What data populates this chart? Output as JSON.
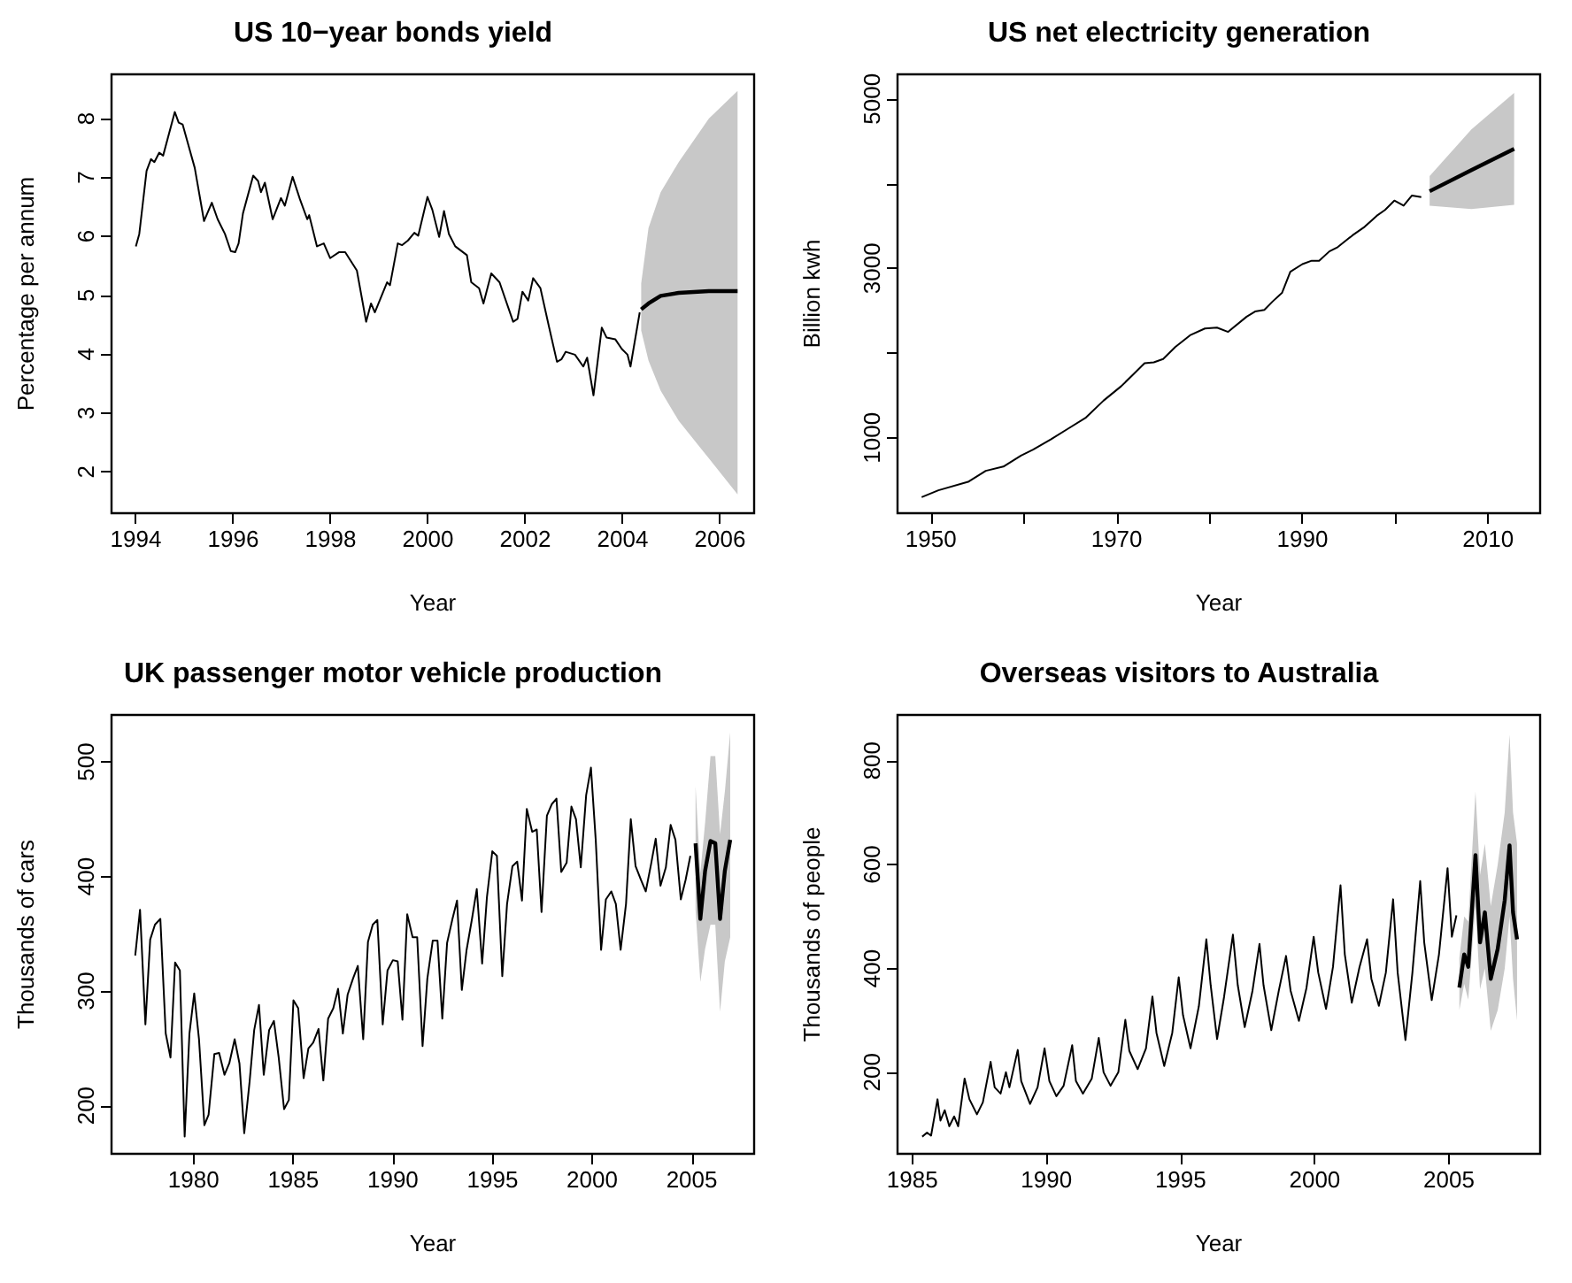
{
  "chart_data": [
    {
      "type": "line",
      "title": "US 10−year bonds yield",
      "xlabel": "Year",
      "ylabel": "Percentage per annum",
      "xlim": [
        1993.5,
        2006.7
      ],
      "ylim": [
        1.3,
        8.75
      ],
      "xticks": [
        1994,
        1996,
        1998,
        2000,
        2002,
        2004,
        2006
      ],
      "yticks": [
        2,
        3,
        4,
        5,
        6,
        7,
        8
      ],
      "series": [
        {
          "type": "line",
          "color": "#000000",
          "x": [
            1994.0,
            1994.07,
            1994.22,
            1994.31,
            1994.38,
            1994.48,
            1994.56,
            1994.8,
            1994.88,
            1994.96,
            1995.21,
            1995.4,
            1995.56,
            1995.68,
            1995.83,
            1995.95,
            1996.04,
            1996.11,
            1996.2,
            1996.41,
            1996.51,
            1996.57,
            1996.65,
            1996.81,
            1996.98,
            1997.06,
            1997.22,
            1997.37,
            1997.52,
            1997.56,
            1997.72,
            1997.86,
            1997.99,
            1998.17,
            1998.3,
            1998.54,
            1998.73,
            1998.83,
            1998.91,
            1999.16,
            1999.22,
            1999.38,
            1999.47,
            1999.59,
            1999.72,
            1999.8,
            1999.99,
            2000.09,
            2000.23,
            2000.33,
            2000.43,
            2000.56,
            2000.8,
            2000.89,
            2001.05,
            2001.14,
            2001.3,
            2001.47,
            2001.75,
            2001.84,
            2001.94,
            2002.06,
            2002.16,
            2002.31,
            2002.49,
            2002.65,
            2002.74,
            2002.83,
            2003.02,
            2003.19,
            2003.27,
            2003.4,
            2003.57,
            2003.67,
            2003.85,
            2003.98,
            2004.1,
            2004.16,
            2004.35
          ],
          "values": [
            5.83,
            6.04,
            7.11,
            7.31,
            7.26,
            7.42,
            7.37,
            8.11,
            7.93,
            7.9,
            7.16,
            6.26,
            6.57,
            6.29,
            6.04,
            5.75,
            5.73,
            5.88,
            6.39,
            7.03,
            6.94,
            6.75,
            6.91,
            6.29,
            6.65,
            6.52,
            7.01,
            6.63,
            6.29,
            6.36,
            5.83,
            5.88,
            5.63,
            5.73,
            5.73,
            5.42,
            4.55,
            4.86,
            4.71,
            5.22,
            5.17,
            5.88,
            5.85,
            5.93,
            6.06,
            6.01,
            6.67,
            6.45,
            5.99,
            6.43,
            6.04,
            5.83,
            5.68,
            5.22,
            5.12,
            4.86,
            5.37,
            5.22,
            4.55,
            4.6,
            5.06,
            4.91,
            5.29,
            5.12,
            4.45,
            3.87,
            3.91,
            4.04,
            3.99,
            3.79,
            3.94,
            3.3,
            4.45,
            4.28,
            4.25,
            4.09,
            3.99,
            3.79,
            4.71
          ]
        },
        {
          "type": "line",
          "color": "#000000",
          "x": [
            2004.38,
            2004.53,
            2004.78,
            2005.15,
            2005.77,
            2006.36
          ],
          "values": [
            4.76,
            4.86,
            4.99,
            5.04,
            5.07,
            5.07
          ],
          "lower": [
            4.4,
            3.89,
            3.38,
            2.87,
            2.23,
            1.62
          ],
          "upper": [
            5.2,
            6.14,
            6.75,
            7.26,
            8.0,
            8.47
          ]
        }
      ]
    },
    {
      "type": "line",
      "title": "US net electricity generation",
      "xlabel": "Year",
      "ylabel": "Billion kwh",
      "xlim": [
        1946.4,
        2015.6
      ],
      "ylim": [
        110,
        5290
      ],
      "xticks": [
        1950,
        {
          "value": 1960,
          "label": null
        },
        1970,
        {
          "value": 1980,
          "label": null
        },
        1990,
        {
          "value": 2000,
          "label": null
        },
        2010
      ],
      "yticks": [
        1000,
        {
          "value": 2000,
          "label": null
        },
        3000,
        {
          "value": 4000,
          "label": null
        },
        5000
      ],
      "series": [
        {
          "type": "line",
          "color": "#000000",
          "x": [
            1949,
            1950.8,
            1954,
            1955.9,
            1957.8,
            1959.7,
            1961,
            1962.9,
            1964.8,
            1966.7,
            1968.6,
            1970.5,
            1971.8,
            1973,
            1974,
            1975,
            1976.3,
            1977.9,
            1979.5,
            1980.8,
            1982,
            1984,
            1984.9,
            1985.9,
            1986.8,
            1987.8,
            1988.7,
            1990,
            1991,
            1991.8,
            1992.9,
            1993.8,
            1995.4,
            1996.7,
            1998,
            1998.9,
            1999.9,
            2000.9,
            2001.8,
            2002.8
          ],
          "values": [
            300,
            380,
            480,
            610,
            660,
            790,
            860,
            980,
            1110,
            1240,
            1440,
            1610,
            1750,
            1880,
            1890,
            1930,
            2070,
            2210,
            2290,
            2300,
            2250,
            2430,
            2490,
            2510,
            2610,
            2710,
            2960,
            3050,
            3090,
            3090,
            3200,
            3250,
            3390,
            3490,
            3620,
            3690,
            3800,
            3740,
            3860,
            3840
          ]
        },
        {
          "type": "line",
          "color": "#000000",
          "x": [
            2003.7,
            2008.2,
            2012.8
          ],
          "values": [
            3910,
            4160,
            4410
          ],
          "lower": [
            3740,
            3700,
            3750
          ],
          "upper": [
            4090,
            4640,
            5070
          ]
        }
      ]
    },
    {
      "type": "line",
      "title": "UK passenger motor vehicle production",
      "xlabel": "Year",
      "ylabel": "Thousands of cars",
      "xlim": [
        1975.88,
        2008.13
      ],
      "ylim": [
        158,
        541
      ],
      "xticks": [
        1980,
        1985,
        1990,
        1995,
        2000,
        2005
      ],
      "yticks": [
        200,
        300,
        400,
        500
      ],
      "series": [
        {
          "type": "line",
          "color": "#000000",
          "x": [
            1977.07,
            1977.31,
            1977.58,
            1977.82,
            1978.06,
            1978.33,
            1978.6,
            1978.84,
            1979.07,
            1979.31,
            1979.55,
            1979.79,
            1980.03,
            1980.27,
            1980.54,
            1980.75,
            1981.04,
            1981.28,
            1981.55,
            1981.79,
            1982.06,
            1982.3,
            1982.54,
            1982.81,
            1983.04,
            1983.28,
            1983.52,
            1983.79,
            1984.03,
            1984.27,
            1984.54,
            1984.78,
            1985.01,
            1985.25,
            1985.52,
            1985.76,
            1986.0,
            1986.27,
            1986.51,
            1986.75,
            1987.01,
            1987.25,
            1987.49,
            1987.73,
            1988.0,
            1988.24,
            1988.51,
            1988.75,
            1988.99,
            1989.22,
            1989.49,
            1989.73,
            1990.0,
            1990.24,
            1990.48,
            1990.72,
            1990.99,
            1991.22,
            1991.49,
            1991.73,
            1992.0,
            1992.24,
            1992.48,
            1992.72,
            1992.99,
            1993.22,
            1993.46,
            1993.7,
            1993.97,
            1994.21,
            1994.48,
            1994.72,
            1994.99,
            1995.22,
            1995.49,
            1995.73,
            1996.0,
            1996.24,
            1996.48,
            1996.72,
            1996.99,
            1997.22,
            1997.46,
            1997.73,
            1997.97,
            1998.21,
            1998.45,
            1998.72,
            1998.96,
            1999.19,
            1999.43,
            1999.7,
            1999.94,
            2000.18,
            2000.45,
            2000.69,
            2000.96,
            2001.19,
            2001.43,
            2001.7,
            2001.94,
            2002.18,
            2002.45,
            2002.69,
            2002.96,
            2003.19,
            2003.43,
            2003.7,
            2003.94,
            2004.18,
            2004.45,
            2004.69,
            2004.93
          ],
          "values": [
            331,
            371,
            271,
            345,
            358,
            363,
            263,
            242,
            325,
            318,
            173,
            263,
            298,
            258,
            183,
            192,
            245,
            246,
            227,
            237,
            258,
            237,
            176,
            221,
            266,
            288,
            227,
            266,
            274,
            242,
            197,
            205,
            292,
            285,
            224,
            250,
            255,
            267,
            222,
            276,
            285,
            302,
            263,
            297,
            311,
            322,
            258,
            343,
            358,
            362,
            271,
            318,
            327,
            326,
            275,
            367,
            347,
            347,
            252,
            311,
            344,
            344,
            276,
            342,
            363,
            379,
            301,
            336,
            363,
            389,
            324,
            382,
            422,
            418,
            313,
            376,
            409,
            413,
            379,
            459,
            439,
            441,
            369,
            453,
            463,
            468,
            404,
            412,
            461,
            450,
            408,
            471,
            495,
            432,
            336,
            380,
            387,
            376,
            336,
            376,
            450,
            409,
            397,
            387,
            411,
            433,
            392,
            408,
            445,
            432,
            380,
            397,
            418
          ]
        },
        {
          "type": "line",
          "color": "#000000",
          "x": [
            2005.19,
            2005.43,
            2005.67,
            2005.94,
            2006.18,
            2006.42,
            2006.66,
            2006.93
          ],
          "values": [
            429,
            363,
            405,
            431,
            429,
            363,
            405,
            432
          ],
          "lower": [
            371,
            308,
            337,
            358,
            358,
            282,
            326,
            347
          ],
          "upper": [
            479,
            403,
            447,
            505,
            505,
            437,
            474,
            526
          ]
        }
      ]
    },
    {
      "type": "line",
      "title": "Overseas visitors to Australia",
      "xlabel": "Year",
      "ylabel": "Thousands of people",
      "xlim": [
        1984.45,
        2008.4
      ],
      "ylim": [
        43,
        888
      ],
      "xticks": [
        1985,
        1990,
        1995,
        2000,
        2005
      ],
      "yticks": [
        200,
        400,
        600,
        800
      ],
      "series": [
        {
          "type": "line",
          "color": "#000000",
          "x": [
            1985.37,
            1985.55,
            1985.7,
            1985.94,
            1986.05,
            1986.21,
            1986.38,
            1986.56,
            1986.71,
            1986.95,
            1987.13,
            1987.41,
            1987.63,
            1987.92,
            1988.07,
            1988.29,
            1988.49,
            1988.62,
            1988.93,
            1989.06,
            1989.39,
            1989.67,
            1989.93,
            1990.11,
            1990.37,
            1990.64,
            1990.96,
            1991.1,
            1991.36,
            1991.69,
            1991.95,
            1992.13,
            1992.39,
            1992.68,
            1992.94,
            1993.09,
            1993.4,
            1993.71,
            1993.95,
            1994.1,
            1994.39,
            1994.69,
            1994.93,
            1995.09,
            1995.37,
            1995.68,
            1995.96,
            1996.12,
            1996.36,
            1996.62,
            1996.95,
            1997.13,
            1997.39,
            1997.68,
            1997.94,
            1998.09,
            1998.38,
            1998.66,
            1998.93,
            1999.1,
            1999.41,
            1999.69,
            1999.96,
            2000.13,
            2000.42,
            2000.68,
            2000.96,
            2001.12,
            2001.38,
            2001.67,
            2001.95,
            2002.11,
            2002.39,
            2002.65,
            2002.92,
            2003.09,
            2003.38,
            2003.64,
            2003.93,
            2004.08,
            2004.36,
            2004.63,
            2004.95,
            2005.11,
            2005.28
          ],
          "values": [
            76,
            84,
            78,
            148,
            107,
            127,
            96,
            115,
            96,
            188,
            148,
            119,
            142,
            220,
            171,
            159,
            200,
            171,
            243,
            183,
            139,
            171,
            246,
            183,
            154,
            174,
            252,
            183,
            159,
            188,
            266,
            200,
            174,
            200,
            301,
            241,
            206,
            246,
            346,
            276,
            212,
            276,
            383,
            310,
            246,
            327,
            456,
            368,
            264,
            345,
            465,
            368,
            287,
            357,
            447,
            368,
            281,
            357,
            424,
            357,
            299,
            362,
            461,
            392,
            322,
            403,
            560,
            427,
            334,
            403,
            456,
            380,
            328,
            392,
            533,
            392,
            262,
            392,
            568,
            450,
            339,
            427,
            593,
            461,
            502
          ]
        },
        {
          "type": "line",
          "color": "#000000",
          "x": [
            2005.39,
            2005.57,
            2005.72,
            2005.99,
            2006.16,
            2006.34,
            2006.56,
            2006.82,
            2007.08,
            2007.26,
            2007.39,
            2007.54
          ],
          "values": [
            363,
            427,
            403,
            618,
            450,
            508,
            380,
            438,
            531,
            637,
            508,
            456
          ],
          "lower": [
            320,
            370,
            340,
            520,
            360,
            400,
            280,
            320,
            400,
            500,
            380,
            300
          ],
          "upper": [
            420,
            500,
            490,
            740,
            580,
            640,
            520,
            600,
            700,
            850,
            700,
            640
          ]
        }
      ]
    }
  ]
}
